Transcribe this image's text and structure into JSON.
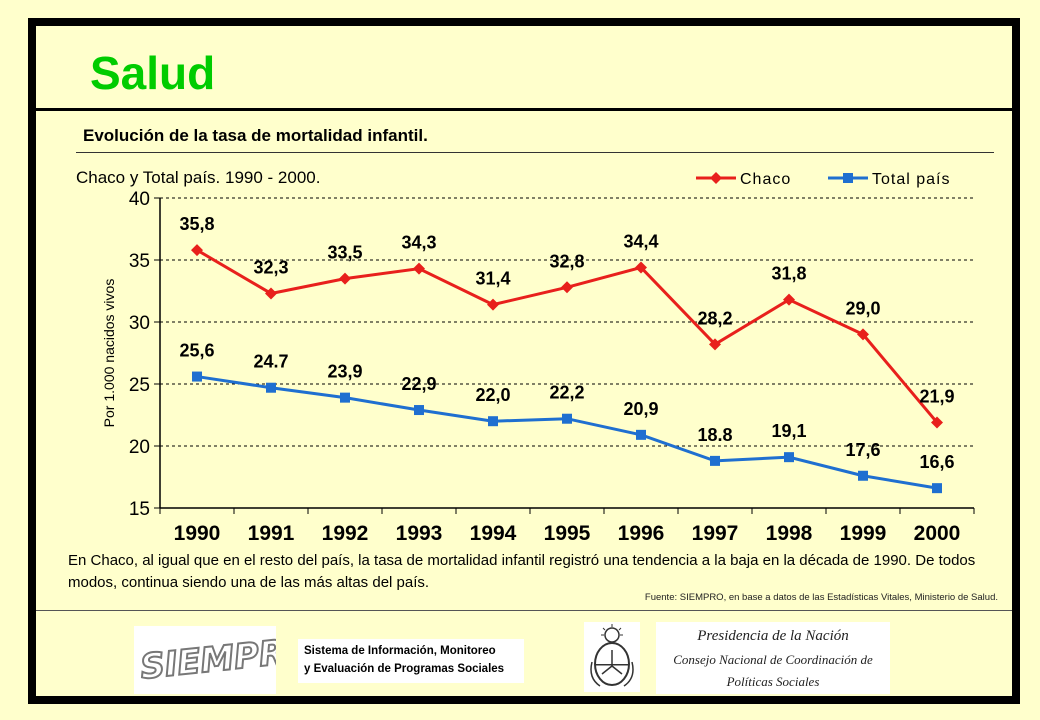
{
  "header": {
    "title": "Salud",
    "subtitle": "Evolución de la tasa de mortalidad infantil.",
    "scope": "Chaco y Total país. 1990 - 2000."
  },
  "colors": {
    "chaco": "#e8201c",
    "total": "#1f6fd0",
    "title": "#00cc00",
    "background": "#ffffcc"
  },
  "chart_data": {
    "type": "line",
    "categories": [
      "1990",
      "1991",
      "1992",
      "1993",
      "1994",
      "1995",
      "1996",
      "1997",
      "1998",
      "1999",
      "2000"
    ],
    "series": [
      {
        "name": "Chaco",
        "values": [
          35.8,
          32.3,
          33.5,
          34.3,
          31.4,
          32.8,
          34.4,
          28.2,
          31.8,
          29.0,
          21.9
        ],
        "labels": [
          "35,8",
          "32,3",
          "33,5",
          "34,3",
          "31,4",
          "32,8",
          "34,4",
          "28,2",
          "31,8",
          "29,0",
          "21,9"
        ],
        "marker": "diamond"
      },
      {
        "name": "Total país",
        "values": [
          25.6,
          24.7,
          23.9,
          22.9,
          22.0,
          22.2,
          20.9,
          18.8,
          19.1,
          17.6,
          16.6
        ],
        "labels": [
          "25,6",
          "24.7",
          "23,9",
          "22,9",
          "22,0",
          "22,2",
          "20,9",
          "18.8",
          "19,1",
          "17,6",
          "16,6"
        ],
        "marker": "square"
      }
    ],
    "ylabel": "Por 1.000 nacidos vivos",
    "yticks": [
      "15",
      "20",
      "25",
      "30",
      "35",
      "40"
    ],
    "ylim": [
      15,
      40
    ],
    "grid": "horizontal dashed",
    "legend": "top-right"
  },
  "note": "En Chaco, al igual que en el resto del país, la tasa de mortalidad infantil registró una tendencia a la baja en la década de 1990. De todos modos, continua siendo una de las más altas del país.",
  "source": "Fuente: SIEMPRO, en base a datos de las Estadísticas Vitales, Ministerio de Salud.",
  "footer": {
    "siempro_logo": "SIEMPRO",
    "sistema_line1": "Sistema de Información, Monitoreo",
    "sistema_line2": "y Evaluación de Programas Sociales",
    "shield_icon": "argentina-coat-of-arms-icon",
    "presidencia_line1": "Presidencia de la Nación",
    "presidencia_line2": "Consejo Nacional de Coordinación de",
    "presidencia_line3": "Políticas Sociales"
  }
}
